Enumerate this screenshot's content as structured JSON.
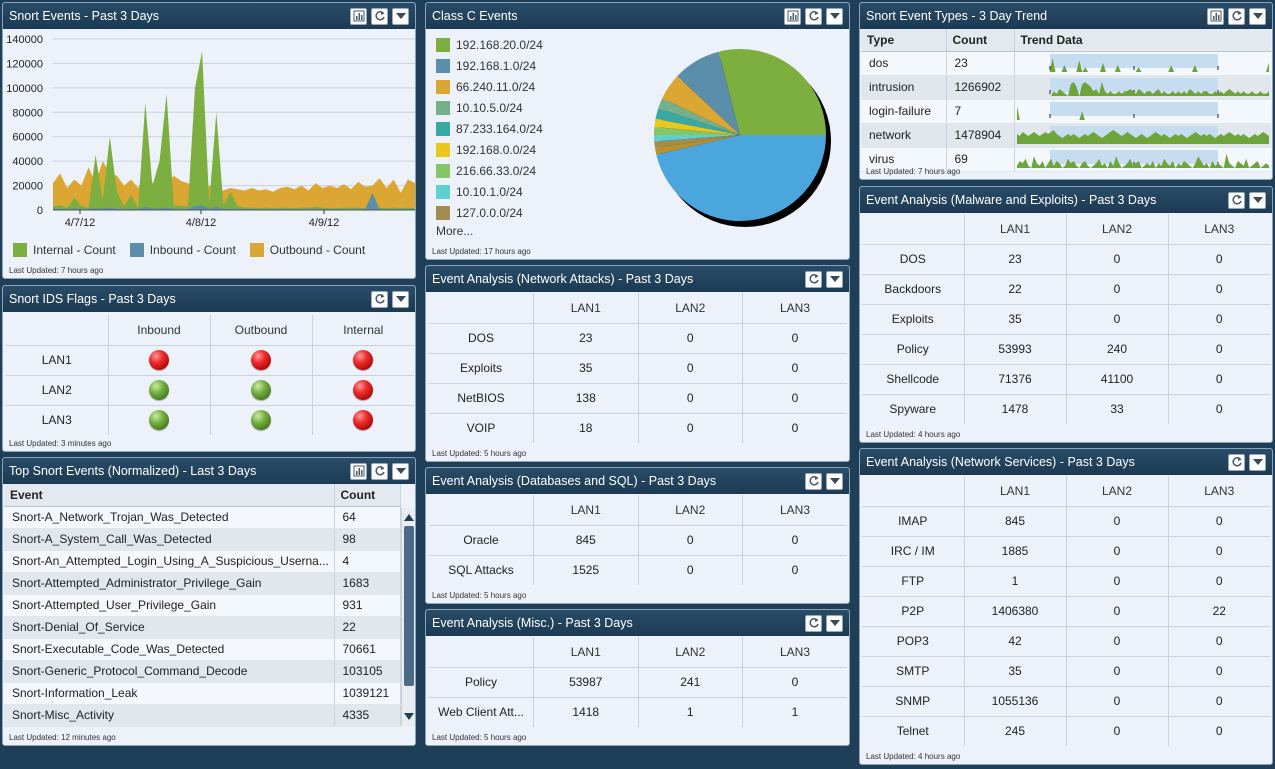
{
  "colors": {
    "internal": "#7caf3f",
    "inbound": "#5b8ea8",
    "outbound": "#dba632"
  },
  "snort_events": {
    "title": "Snort Events - Past 3 Days",
    "last_updated": "Last Updated: 7 hours ago",
    "legend": [
      "Internal - Count",
      "Inbound - Count",
      "Outbound - Count"
    ],
    "chart_data": {
      "type": "area",
      "title": "Snort Events - Past 3 Days",
      "y_ticks": [
        "140000",
        "120000",
        "100000",
        "80000",
        "60000",
        "40000",
        "20000",
        "0"
      ],
      "x_ticks": [
        "4/7/12",
        "4/8/12",
        "4/9/12"
      ],
      "ylim": [
        0,
        140000
      ],
      "series": [
        {
          "name": "Outbound - Count",
          "values": [
            22000,
            30000,
            18000,
            25000,
            20000,
            35000,
            22000,
            40000,
            30000,
            28000,
            20000,
            25000,
            18000,
            30000,
            22000,
            26000,
            20000,
            28000,
            24000,
            22000,
            18000,
            15000,
            20000,
            17000,
            16000,
            18000,
            17000,
            16000,
            18000,
            16000,
            17000,
            15000,
            18000,
            19000,
            17000,
            20000,
            16000,
            22000,
            18000,
            20000,
            18000,
            21000,
            17000,
            23000,
            19000,
            20000,
            26000,
            18000,
            25000,
            14000,
            25000,
            22000
          ]
        },
        {
          "name": "Internal - Count",
          "values": [
            3000,
            4000,
            2000,
            10000,
            3000,
            2000,
            45000,
            8000,
            60000,
            15000,
            3000,
            12000,
            2000,
            88000,
            20000,
            40000,
            95000,
            4000,
            3000,
            3000,
            100000,
            130000,
            5000,
            80000,
            4000,
            15000,
            3000,
            2000,
            2000,
            1500,
            2000,
            1500,
            1800,
            2000,
            1500,
            2000,
            1800,
            2500,
            2000,
            1500,
            1500,
            2000,
            1800,
            2000,
            1500,
            1800,
            2000,
            1500,
            2000,
            1500,
            2000,
            1500
          ]
        },
        {
          "name": "Inbound - Count",
          "values": [
            1000,
            1000,
            800,
            1200,
            900,
            1000,
            1500,
            1200,
            2000,
            1000,
            900,
            1100,
            900,
            2500,
            1200,
            1500,
            2000,
            1000,
            900,
            900,
            3000,
            4000,
            1000,
            2500,
            900,
            1100,
            900,
            800,
            800,
            700,
            800,
            700,
            800,
            800,
            700,
            800,
            700,
            900,
            800,
            700,
            700,
            800,
            700,
            800,
            700,
            14000,
            800,
            700,
            800,
            700,
            800,
            700
          ]
        }
      ]
    }
  },
  "ids_flags": {
    "title": "Snort IDS Flags - Past 3 Days",
    "last_updated": "Last Updated: 3 minutes ago",
    "columns": [
      "Inbound",
      "Outbound",
      "Internal"
    ],
    "rows": [
      {
        "label": "LAN1",
        "flags": [
          "red",
          "red",
          "red"
        ]
      },
      {
        "label": "LAN2",
        "flags": [
          "green",
          "green",
          "red"
        ]
      },
      {
        "label": "LAN3",
        "flags": [
          "green",
          "green",
          "red"
        ]
      }
    ]
  },
  "top_events": {
    "title": "Top Snort Events (Normalized) - Last 3 Days",
    "last_updated": "Last Updated: 12 minutes ago",
    "col_event": "Event",
    "col_count": "Count",
    "rows": [
      [
        "Snort-A_Network_Trojan_Was_Detected",
        "64"
      ],
      [
        "Snort-A_System_Call_Was_Detected",
        "98"
      ],
      [
        "Snort-An_Attempted_Login_Using_A_Suspicious_Userna...",
        "4"
      ],
      [
        "Snort-Attempted_Administrator_Privilege_Gain",
        "1683"
      ],
      [
        "Snort-Attempted_User_Privilege_Gain",
        "931"
      ],
      [
        "Snort-Denial_Of_Service",
        "22"
      ],
      [
        "Snort-Executable_Code_Was_Detected",
        "70661"
      ],
      [
        "Snort-Generic_Protocol_Command_Decode",
        "103105"
      ],
      [
        "Snort-Information_Leak",
        "1039121"
      ],
      [
        "Snort-Misc_Activity",
        "4335"
      ]
    ]
  },
  "class_c": {
    "title": "Class C Events",
    "last_updated": "Last Updated: 17 hours ago",
    "more": "More...",
    "chart_data": {
      "type": "pie",
      "title": "Class C Events",
      "slices": [
        {
          "label": "192.168.20.0/24",
          "value": 29,
          "color": "#7caf3f"
        },
        {
          "label": "192.168.1.0/24",
          "value": 9,
          "color": "#5b8ea8"
        },
        {
          "label": "66.240.11.0/24",
          "value": 5,
          "color": "#dba632"
        },
        {
          "label": "10.10.5.0/24",
          "value": 2,
          "color": "#76b08a"
        },
        {
          "label": "87.233.164.0/24",
          "value": 2,
          "color": "#3aa9a4"
        },
        {
          "label": "192.168.0.0/24",
          "value": 1.5,
          "color": "#e8c81a"
        },
        {
          "label": "216.66.33.0/24",
          "value": 1.5,
          "color": "#86c565"
        },
        {
          "label": "10.10.1.0/24",
          "value": 1.2,
          "color": "#5fd0d0"
        },
        {
          "label": "127.0.0.0/24",
          "value": 1.2,
          "color": "#a38c52"
        },
        {
          "label": "",
          "value": 1.3,
          "color": "#b8902e"
        },
        {
          "label": "",
          "value": 46.3,
          "color": "#4aa6dd"
        }
      ]
    }
  },
  "net_attacks": {
    "title": "Event Analysis (Network Attacks) - Past 3 Days",
    "last_updated": "Last Updated: 5 hours ago",
    "columns": [
      "LAN1",
      "LAN2",
      "LAN3"
    ],
    "rows": [
      [
        "DOS",
        "23",
        "0",
        "0"
      ],
      [
        "Exploits",
        "35",
        "0",
        "0"
      ],
      [
        "NetBIOS",
        "138",
        "0",
        "0"
      ],
      [
        "VOIP",
        "18",
        "0",
        "0"
      ]
    ]
  },
  "db_sql": {
    "title": "Event Analysis (Databases and SQL) - Past 3 Days",
    "last_updated": "Last Updated: 5 hours ago",
    "columns": [
      "LAN1",
      "LAN2",
      "LAN3"
    ],
    "rows": [
      [
        "Oracle",
        "845",
        "0",
        "0"
      ],
      [
        "SQL Attacks",
        "1525",
        "0",
        "0"
      ]
    ]
  },
  "misc": {
    "title": "Event Analysis (Misc.) - Past 3 Days",
    "last_updated": "Last Updated: 5 hours ago",
    "columns": [
      "LAN1",
      "LAN2",
      "LAN3"
    ],
    "rows": [
      [
        "Policy",
        "53987",
        "241",
        "0"
      ],
      [
        "Web Client Att...",
        "1418",
        "1",
        "1"
      ]
    ]
  },
  "event_types": {
    "title": "Snort Event Types - 3 Day Trend",
    "last_updated": "Last Updated: 7 hours ago",
    "col_type": "Type",
    "col_count": "Count",
    "col_trend": "Trend Data",
    "rows": [
      {
        "type": "dos",
        "count": "23",
        "trend": [
          0,
          0,
          0,
          0,
          0,
          0,
          0,
          0,
          0,
          0,
          0,
          0,
          6,
          0,
          0,
          0,
          3,
          0,
          0,
          0,
          0,
          5,
          0,
          2,
          0,
          0,
          0,
          0,
          0,
          4,
          0,
          0,
          0,
          0,
          3,
          0,
          0,
          0,
          0,
          0,
          0,
          2,
          0,
          0,
          0,
          0,
          0,
          0,
          0,
          0,
          0,
          0,
          3,
          0,
          0,
          0,
          0,
          0,
          0,
          0,
          3,
          0,
          0,
          0,
          0,
          0,
          0,
          0,
          0,
          0,
          0,
          0,
          0,
          0,
          0,
          0,
          0,
          0,
          0,
          0,
          0,
          0,
          0,
          0,
          0,
          4
        ]
      },
      {
        "type": "intrusion",
        "count": "1266902",
        "trend": [
          0,
          0,
          0,
          0,
          0,
          0,
          0,
          0,
          0,
          0,
          0,
          0,
          0,
          2,
          1,
          3,
          2,
          1,
          0,
          5,
          6,
          4,
          0,
          5,
          6,
          5,
          4,
          2,
          3,
          1,
          6,
          2,
          1,
          2,
          1,
          1,
          2,
          1,
          2,
          2,
          3,
          2,
          1,
          3,
          2,
          1,
          2,
          2,
          1,
          2,
          3,
          1,
          2,
          1,
          1,
          2,
          1,
          2,
          1,
          2,
          1,
          3,
          2,
          1,
          2,
          1,
          2,
          2,
          1,
          1,
          2,
          1,
          2,
          1,
          2,
          3,
          2,
          1,
          2,
          1,
          2,
          1,
          1,
          2,
          1,
          1,
          2,
          1,
          1,
          2
        ]
      },
      {
        "type": "login-failure",
        "count": "7",
        "trend": [
          8,
          0,
          0,
          0,
          0,
          0,
          0,
          0,
          0,
          0,
          0,
          0,
          0,
          0,
          0,
          0,
          0,
          0,
          0,
          0,
          0,
          0,
          0,
          5,
          0,
          0,
          0,
          0,
          0,
          0,
          0,
          0,
          0,
          0,
          0,
          0,
          0,
          0,
          0,
          0,
          0,
          0,
          0,
          0,
          0,
          0,
          0,
          0,
          0,
          0,
          0,
          0,
          0,
          0,
          0,
          0,
          0,
          0,
          0,
          0,
          0,
          0,
          0,
          0,
          0,
          0,
          0,
          0,
          0,
          0,
          0,
          0,
          0,
          0,
          0,
          0,
          0,
          0,
          0,
          0,
          0,
          0,
          0,
          0,
          0,
          0,
          0,
          0,
          0,
          0
        ]
      },
      {
        "type": "network",
        "count": "1478904",
        "trend": [
          5,
          4,
          6,
          5,
          4,
          5,
          6,
          5,
          4,
          5,
          6,
          5,
          6,
          7,
          5,
          4,
          3,
          4,
          5,
          4,
          5,
          4,
          3,
          4,
          5,
          4,
          5,
          6,
          5,
          4,
          3,
          4,
          5,
          6,
          7,
          6,
          5,
          4,
          5,
          6,
          5,
          4,
          3,
          4,
          5,
          4,
          3,
          4,
          5,
          6,
          5,
          4,
          5,
          4,
          3,
          4,
          5,
          4,
          5,
          4,
          3,
          4,
          5,
          6,
          5,
          4,
          5,
          4,
          5,
          4,
          3,
          4,
          5,
          4,
          5,
          6,
          5,
          4,
          5,
          4,
          5,
          4,
          3,
          4,
          5,
          4,
          5,
          6,
          5,
          4
        ]
      },
      {
        "type": "virus",
        "count": "69",
        "trend": [
          1,
          3,
          2,
          4,
          1,
          0,
          5,
          2,
          1,
          3,
          0,
          2,
          4,
          1,
          3,
          2,
          0,
          1,
          4,
          2,
          3,
          1,
          0,
          2,
          3,
          1,
          0,
          1,
          2,
          4,
          1,
          2,
          0,
          3,
          1,
          5,
          2,
          0,
          1,
          2,
          4,
          1,
          2,
          3,
          0,
          1,
          2,
          1,
          3,
          0,
          2,
          1,
          4,
          2,
          1,
          3,
          0,
          2,
          1,
          3,
          2,
          1,
          0,
          2,
          5,
          3,
          1,
          2,
          0,
          3,
          1,
          2,
          1,
          0,
          6,
          2,
          1,
          0,
          3,
          2,
          1,
          4,
          0,
          1,
          2,
          3,
          0,
          1,
          2,
          1
        ]
      }
    ]
  },
  "malware": {
    "title": "Event Analysis (Malware and Exploits) - Past 3 Days",
    "last_updated": "Last Updated: 4 hours ago",
    "columns": [
      "LAN1",
      "LAN2",
      "LAN3"
    ],
    "rows": [
      [
        "DOS",
        "23",
        "0",
        "0"
      ],
      [
        "Backdoors",
        "22",
        "0",
        "0"
      ],
      [
        "Exploits",
        "35",
        "0",
        "0"
      ],
      [
        "Policy",
        "53993",
        "240",
        "0"
      ],
      [
        "Shellcode",
        "71376",
        "41100",
        "0"
      ],
      [
        "Spyware",
        "1478",
        "33",
        "0"
      ]
    ]
  },
  "net_services": {
    "title": "Event Analysis (Network Services) - Past 3 Days",
    "last_updated": "Last Updated: 4 hours ago",
    "columns": [
      "LAN1",
      "LAN2",
      "LAN3"
    ],
    "rows": [
      [
        "IMAP",
        "845",
        "0",
        "0"
      ],
      [
        "IRC / IM",
        "1885",
        "0",
        "0"
      ],
      [
        "FTP",
        "1",
        "0",
        "0"
      ],
      [
        "P2P",
        "1406380",
        "0",
        "22"
      ],
      [
        "POP3",
        "42",
        "0",
        "0"
      ],
      [
        "SMTP",
        "35",
        "0",
        "0"
      ],
      [
        "SNMP",
        "1055136",
        "0",
        "0"
      ],
      [
        "Telnet",
        "245",
        "0",
        "0"
      ]
    ]
  }
}
